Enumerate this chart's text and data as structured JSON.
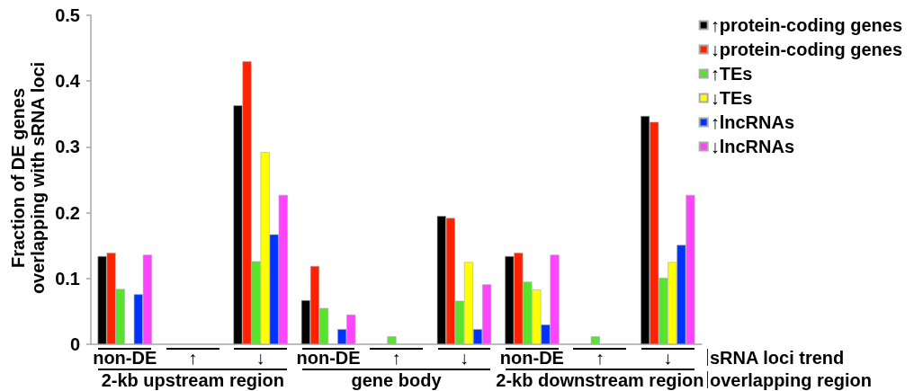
{
  "chart_data": {
    "type": "bar",
    "ylabel": "Fraction of DE genes overlapping with sRNA loci",
    "xlabel": "sRNA loci trend",
    "annotations": [
      "2-kb upstream region",
      "gene body",
      "2-kb downstream region",
      "overlapping region"
    ],
    "categories": [
      "non-DE",
      "↑",
      "↓",
      "non-DE",
      "↑",
      "↓",
      "non-DE",
      "↑",
      "↓"
    ],
    "series": [
      {
        "name": "↑protein-coding genes",
        "color": "#000000",
        "values": [
          0.134,
          0,
          0.363,
          0.067,
          0,
          0.195,
          0.134,
          0,
          0.347
        ]
      },
      {
        "name": "↓protein-coding genes",
        "color": "#ff2200",
        "values": [
          0.139,
          0,
          0.43,
          0.119,
          0,
          0.192,
          0.139,
          0,
          0.338
        ]
      },
      {
        "name": "↑TEs",
        "color": "#55e52a",
        "values": [
          0.084,
          0,
          0.126,
          0.055,
          0.012,
          0.066,
          0.095,
          0.012,
          0.101
        ]
      },
      {
        "name": "↓TEs",
        "color": "#ffff00",
        "values": [
          0,
          0,
          0.292,
          0,
          0,
          0.125,
          0.083,
          0,
          0.125
        ]
      },
      {
        "name": "↑lncRNAs",
        "color": "#0033ff",
        "values": [
          0.076,
          0,
          0.167,
          0.023,
          0,
          0.023,
          0.03,
          0,
          0.151
        ]
      },
      {
        "name": "↓lncRNAs",
        "color": "#ff44ff",
        "values": [
          0.136,
          0,
          0.227,
          0.045,
          0,
          0.091,
          0.136,
          0,
          0.227
        ]
      }
    ],
    "ylim": [
      0,
      0.5
    ],
    "yticks": [
      0,
      0.1,
      0.2,
      0.3,
      0.4,
      0.5
    ],
    "legend": "top right"
  }
}
